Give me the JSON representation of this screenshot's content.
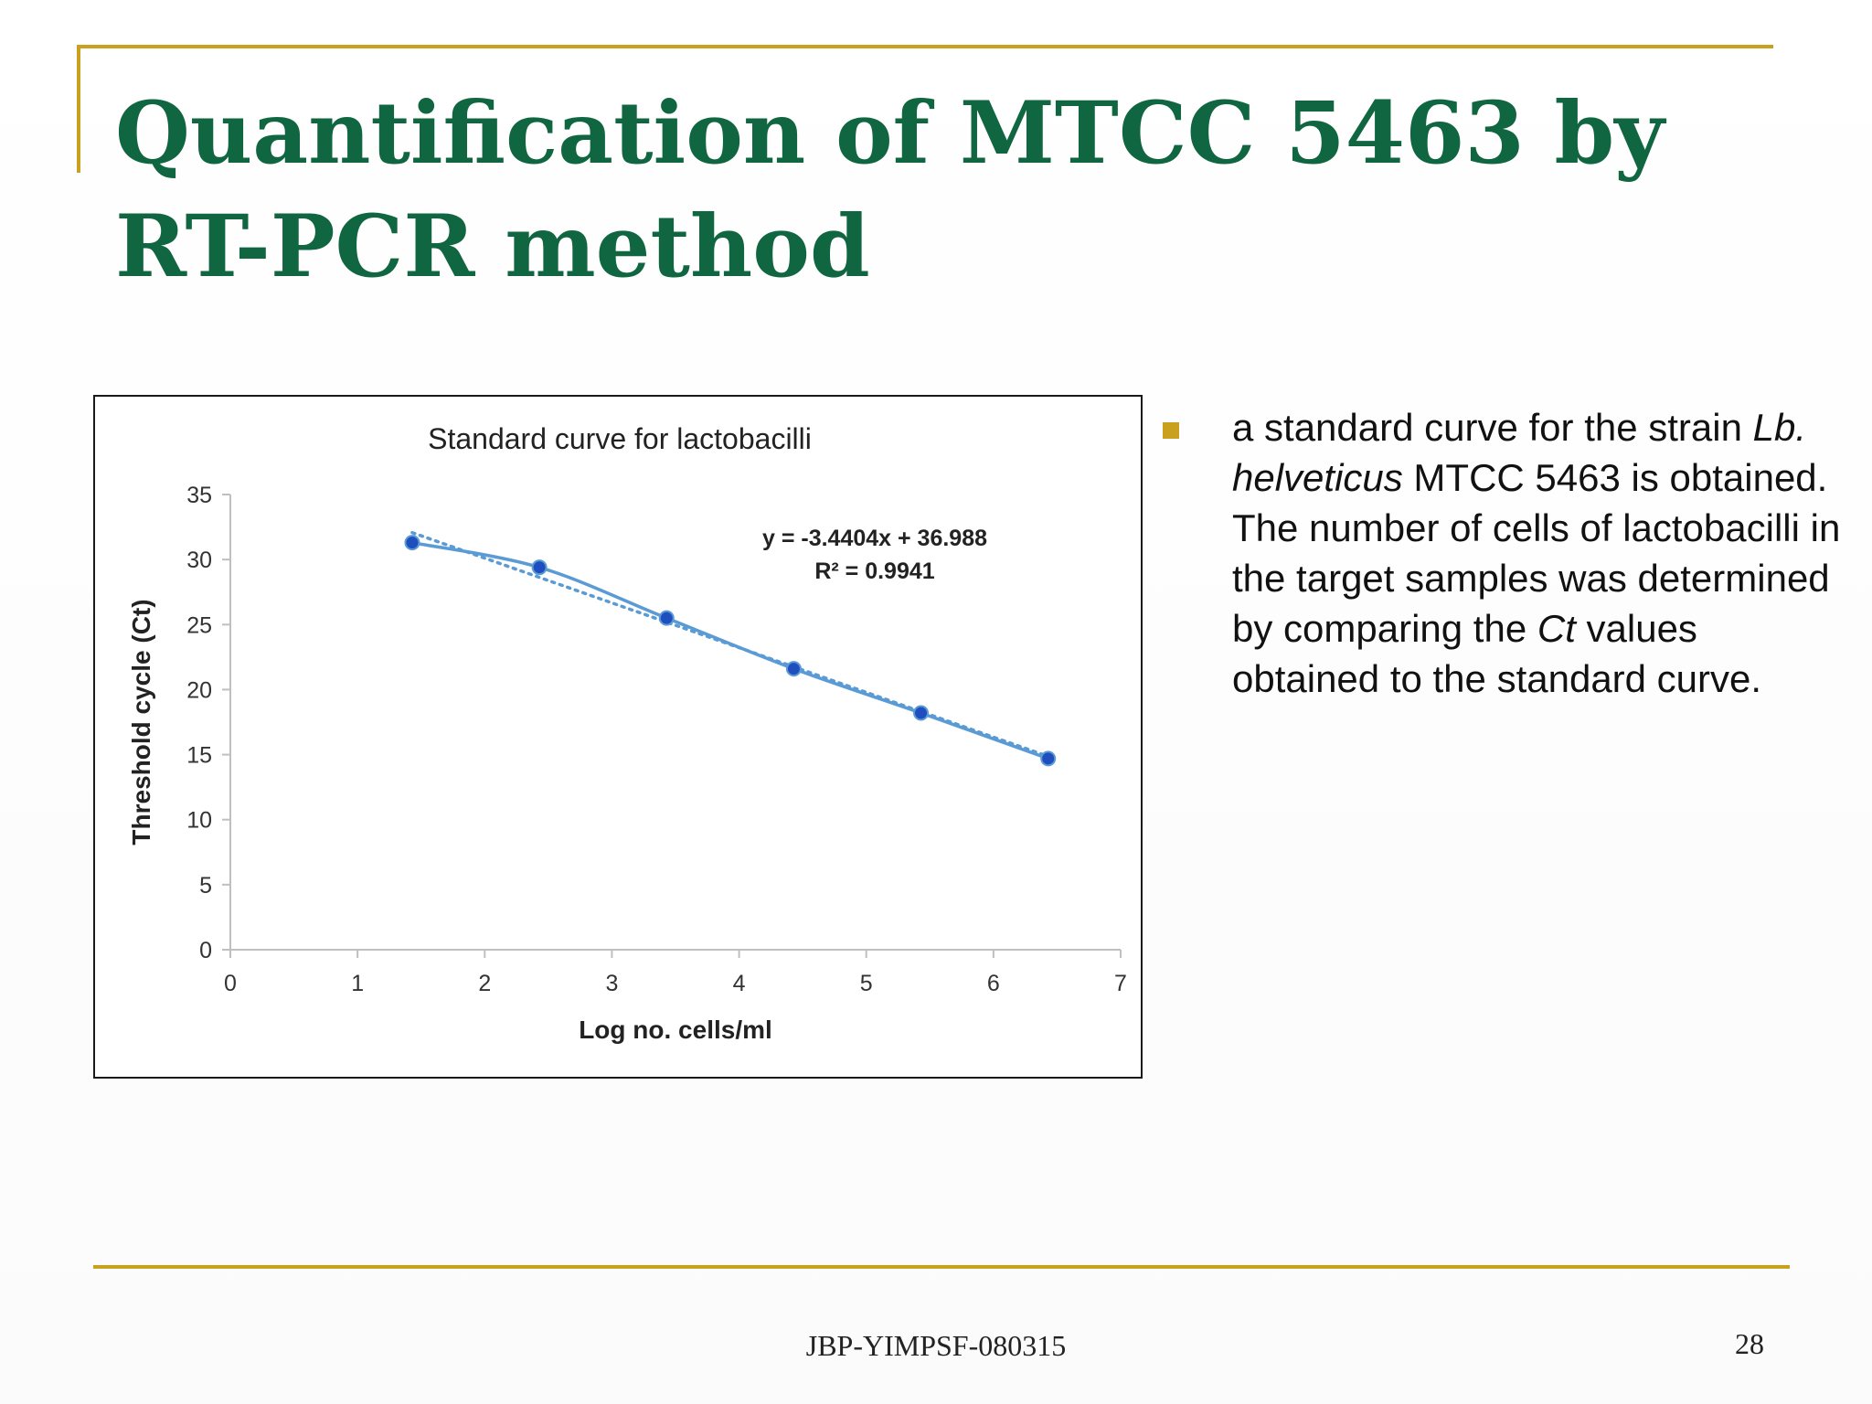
{
  "slide": {
    "title": "Quantification of MTCC 5463 by RT-PCR method",
    "bullet": {
      "seg1": "a standard curve for the strain ",
      "seg2": "Lb. helveticus",
      "seg3": " MTCC 5463 is obtained. The number of cells of lactobacilli in the target samples was determined by comparing the ",
      "seg4": "Ct",
      "seg5": " values obtained to the standard curve."
    },
    "footer": "JBP-YIMPSF-080315",
    "page_number": "28"
  },
  "colors": {
    "title": "#106640",
    "accent_rule": "#c9a11e",
    "series_line": "#5b9bd5",
    "series_marker": "#1f4fbf",
    "trendline": "#5b9bd5"
  },
  "chart_data": {
    "type": "scatter",
    "title": "Standard curve for lactobacilli",
    "xlabel": "Log no. cells/ml",
    "ylabel": "Threshold cycle (Ct)",
    "xlim": [
      0,
      7
    ],
    "ylim": [
      0,
      35
    ],
    "xticks": [
      0,
      1,
      2,
      3,
      4,
      5,
      6,
      7
    ],
    "yticks": [
      0,
      5,
      10,
      15,
      20,
      25,
      30,
      35
    ],
    "grid": false,
    "legend": "none",
    "series": [
      {
        "x": [
          1.43,
          2.43,
          3.43,
          4.43,
          5.43,
          6.43
        ],
        "y": [
          31.3,
          29.4,
          25.5,
          21.6,
          18.2,
          14.7
        ],
        "line": "smooth",
        "marker": "circle"
      }
    ],
    "trendline": {
      "type": "linear",
      "slope": -3.4404,
      "intercept": 36.988,
      "style": "dotted"
    },
    "annotations": [
      "y = -3.4404x + 36.988",
      "R² = 0.9941"
    ]
  }
}
